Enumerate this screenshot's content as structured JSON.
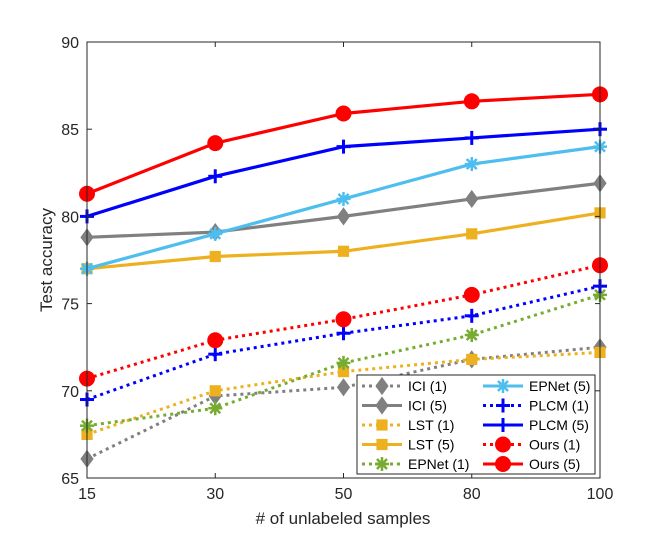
{
  "chart_data": {
    "type": "line",
    "title": "",
    "xlabel": "# of unlabeled samples",
    "ylabel": "Test accuracy",
    "categories": [
      "15",
      "30",
      "50",
      "80",
      "100"
    ],
    "yticks": [
      "65",
      "70",
      "75",
      "80",
      "85",
      "90"
    ],
    "ylim": [
      65,
      90
    ],
    "grid": false,
    "legend_position": "bottom-right",
    "series": [
      {
        "name": "ICI (1)",
        "values": [
          66.1,
          69.7,
          70.2,
          71.8,
          72.5
        ],
        "color": "#808080",
        "dash": "dotted",
        "marker": "diamond"
      },
      {
        "name": "ICI (5)",
        "values": [
          78.8,
          79.1,
          80.0,
          81.0,
          81.9
        ],
        "color": "#808080",
        "dash": "solid",
        "marker": "diamond"
      },
      {
        "name": "LST (1)",
        "values": [
          67.5,
          70.0,
          71.1,
          71.8,
          72.2
        ],
        "color": "#EDB120",
        "dash": "dotted",
        "marker": "square"
      },
      {
        "name": "LST (5)",
        "values": [
          77.0,
          77.7,
          78.0,
          79.0,
          80.2
        ],
        "color": "#EDB120",
        "dash": "solid",
        "marker": "square"
      },
      {
        "name": "EPNet (1)",
        "values": [
          68.0,
          69.0,
          71.6,
          73.2,
          75.5
        ],
        "color": "#77AC30",
        "dash": "dotted",
        "marker": "asterisk"
      },
      {
        "name": "EPNet (5)",
        "values": [
          77.0,
          79.0,
          81.0,
          83.0,
          84.0
        ],
        "color": "#4DBEEE",
        "dash": "solid",
        "marker": "asterisk"
      },
      {
        "name": "PLCM (1)",
        "values": [
          69.5,
          72.1,
          73.3,
          74.3,
          76.0
        ],
        "color": "#0000FF",
        "dash": "dotted",
        "marker": "plus"
      },
      {
        "name": "PLCM (5)",
        "values": [
          80.0,
          82.3,
          84.0,
          84.5,
          85.0
        ],
        "color": "#0000FF",
        "dash": "solid",
        "marker": "plus"
      },
      {
        "name": "Ours (1)",
        "values": [
          70.7,
          72.9,
          74.1,
          75.5,
          77.2
        ],
        "color": "#FF0000",
        "dash": "dotted",
        "marker": "circle"
      },
      {
        "name": "Ours (5)",
        "values": [
          81.3,
          84.2,
          85.9,
          86.6,
          87.0
        ],
        "color": "#FF0000",
        "dash": "solid",
        "marker": "circle"
      }
    ]
  }
}
